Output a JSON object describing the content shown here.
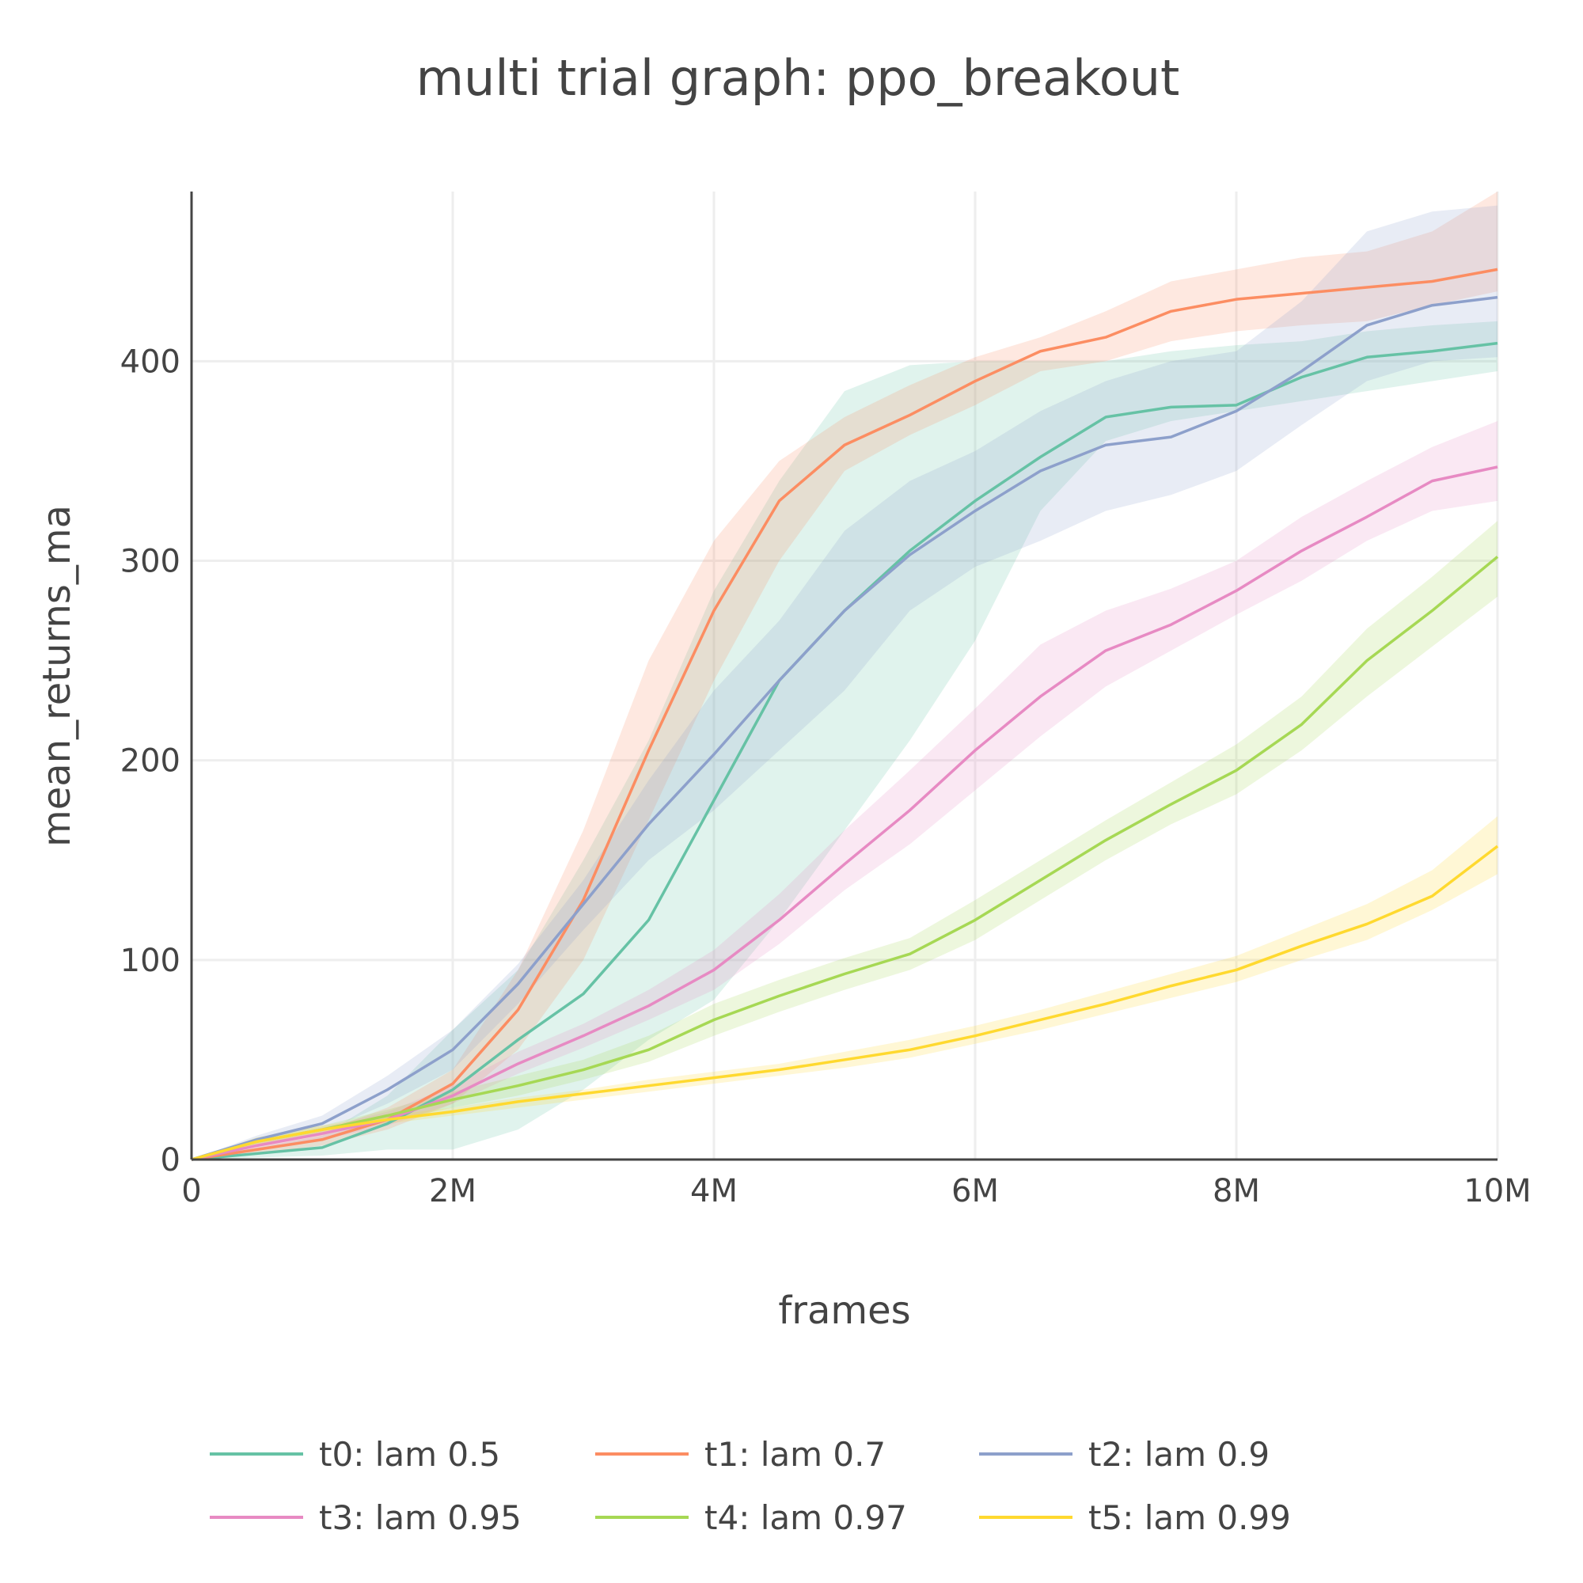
{
  "chart_data": {
    "type": "line",
    "title": "multi trial graph: ppo_breakout",
    "xlabel": "frames",
    "ylabel": "mean_returns_ma",
    "xlim": [
      0,
      10000000
    ],
    "ylim": [
      0,
      485
    ],
    "x_ticks": [
      0,
      2000000,
      4000000,
      6000000,
      8000000,
      10000000
    ],
    "x_tick_labels": [
      "0",
      "2M",
      "4M",
      "6M",
      "8M",
      "10M"
    ],
    "y_ticks": [
      0,
      100,
      200,
      300,
      400
    ],
    "y_tick_labels": [
      "0",
      "100",
      "200",
      "300",
      "400"
    ],
    "grid": true,
    "legend_position": "bottom",
    "series": [
      {
        "name": "t0: lam 0.5",
        "color": "#66c2a5",
        "x": [
          0,
          500000,
          1000000,
          1500000,
          2000000,
          2500000,
          3000000,
          3500000,
          4000000,
          4500000,
          5000000,
          5500000,
          6000000,
          6500000,
          7000000,
          7500000,
          8000000,
          8500000,
          9000000,
          9500000,
          10000000
        ],
        "y": [
          0,
          3,
          6,
          18,
          35,
          60,
          83,
          120,
          180,
          240,
          275,
          305,
          330,
          352,
          372,
          377,
          378,
          392,
          402,
          405,
          409
        ],
        "lower": [
          0,
          1,
          2,
          5,
          5,
          15,
          35,
          60,
          80,
          120,
          165,
          210,
          260,
          325,
          360,
          370,
          375,
          380,
          385,
          390,
          395
        ],
        "upper": [
          0,
          6,
          12,
          32,
          65,
          95,
          150,
          210,
          285,
          340,
          385,
          398,
          400,
          400,
          400,
          405,
          408,
          410,
          415,
          418,
          420
        ]
      },
      {
        "name": "t1: lam 0.7",
        "color": "#fc8d62",
        "x": [
          0,
          500000,
          1000000,
          1500000,
          2000000,
          2500000,
          3000000,
          3500000,
          4000000,
          4500000,
          5000000,
          5500000,
          6000000,
          6500000,
          7000000,
          7500000,
          8000000,
          8500000,
          9000000,
          9500000,
          10000000
        ],
        "y": [
          0,
          5,
          10,
          20,
          38,
          75,
          130,
          205,
          275,
          330,
          358,
          373,
          390,
          405,
          412,
          425,
          431,
          434,
          437,
          440,
          446
        ],
        "lower": [
          0,
          3,
          7,
          15,
          28,
          55,
          100,
          170,
          240,
          300,
          345,
          363,
          378,
          395,
          400,
          410,
          415,
          418,
          420,
          428,
          435
        ],
        "upper": [
          0,
          8,
          14,
          26,
          45,
          95,
          165,
          250,
          310,
          350,
          372,
          388,
          402,
          412,
          425,
          440,
          446,
          452,
          455,
          465,
          485
        ]
      },
      {
        "name": "t2: lam 0.9",
        "color": "#8da0cb",
        "x": [
          0,
          500000,
          1000000,
          1500000,
          2000000,
          2500000,
          3000000,
          3500000,
          4000000,
          4500000,
          5000000,
          5500000,
          6000000,
          6500000,
          7000000,
          7500000,
          8000000,
          8500000,
          9000000,
          9500000,
          10000000
        ],
        "y": [
          0,
          10,
          18,
          35,
          55,
          88,
          128,
          168,
          203,
          240,
          275,
          303,
          325,
          345,
          358,
          362,
          375,
          395,
          418,
          428,
          432
        ],
        "lower": [
          0,
          8,
          14,
          28,
          45,
          78,
          115,
          150,
          175,
          205,
          235,
          275,
          297,
          310,
          325,
          333,
          345,
          368,
          390,
          400,
          402
        ],
        "upper": [
          0,
          12,
          22,
          42,
          65,
          98,
          140,
          190,
          235,
          270,
          315,
          340,
          355,
          375,
          390,
          400,
          405,
          430,
          465,
          475,
          478
        ]
      },
      {
        "name": "t3: lam 0.95",
        "color": "#e78ac3",
        "x": [
          0,
          500000,
          1000000,
          1500000,
          2000000,
          2500000,
          3000000,
          3500000,
          4000000,
          4500000,
          5000000,
          5500000,
          6000000,
          6500000,
          7000000,
          7500000,
          8000000,
          8500000,
          9000000,
          9500000,
          10000000
        ],
        "y": [
          0,
          7,
          13,
          20,
          32,
          48,
          62,
          77,
          95,
          120,
          148,
          175,
          205,
          232,
          255,
          268,
          285,
          305,
          322,
          340,
          347
        ],
        "lower": [
          0,
          5,
          10,
          17,
          28,
          43,
          56,
          70,
          85,
          108,
          135,
          158,
          185,
          212,
          237,
          255,
          273,
          290,
          310,
          325,
          330
        ],
        "upper": [
          0,
          9,
          16,
          24,
          37,
          54,
          68,
          85,
          105,
          133,
          165,
          195,
          226,
          258,
          275,
          286,
          300,
          322,
          340,
          357,
          370
        ]
      },
      {
        "name": "t4: lam 0.97",
        "color": "#a6d854",
        "x": [
          0,
          500000,
          1000000,
          1500000,
          2000000,
          2500000,
          3000000,
          3500000,
          4000000,
          4500000,
          5000000,
          5500000,
          6000000,
          6500000,
          7000000,
          7500000,
          8000000,
          8500000,
          9000000,
          9500000,
          10000000
        ],
        "y": [
          0,
          9,
          15,
          22,
          30,
          37,
          45,
          55,
          70,
          82,
          93,
          103,
          120,
          140,
          160,
          178,
          195,
          218,
          250,
          275,
          302
        ],
        "lower": [
          0,
          7,
          13,
          19,
          26,
          32,
          40,
          49,
          62,
          74,
          85,
          95,
          110,
          130,
          150,
          168,
          183,
          205,
          232,
          257,
          282
        ],
        "upper": [
          0,
          11,
          17,
          25,
          34,
          42,
          50,
          62,
          78,
          90,
          101,
          111,
          130,
          150,
          170,
          189,
          208,
          232,
          266,
          292,
          320
        ]
      },
      {
        "name": "t5: lam 0.99",
        "color": "#ffd92f",
        "x": [
          0,
          500000,
          1000000,
          1500000,
          2000000,
          2500000,
          3000000,
          3500000,
          4000000,
          4500000,
          5000000,
          5500000,
          6000000,
          6500000,
          7000000,
          7500000,
          8000000,
          8500000,
          9000000,
          9500000,
          10000000
        ],
        "y": [
          0,
          9,
          15,
          20,
          24,
          29,
          33,
          37,
          41,
          45,
          50,
          55,
          62,
          70,
          78,
          87,
          95,
          107,
          118,
          132,
          157
        ],
        "lower": [
          0,
          7,
          13,
          18,
          22,
          26,
          30,
          34,
          38,
          42,
          46,
          51,
          58,
          65,
          73,
          81,
          89,
          100,
          110,
          125,
          143
        ],
        "upper": [
          0,
          11,
          17,
          22,
          26,
          31,
          35,
          40,
          44,
          48,
          54,
          60,
          67,
          75,
          84,
          93,
          102,
          115,
          128,
          145,
          172
        ]
      }
    ]
  }
}
